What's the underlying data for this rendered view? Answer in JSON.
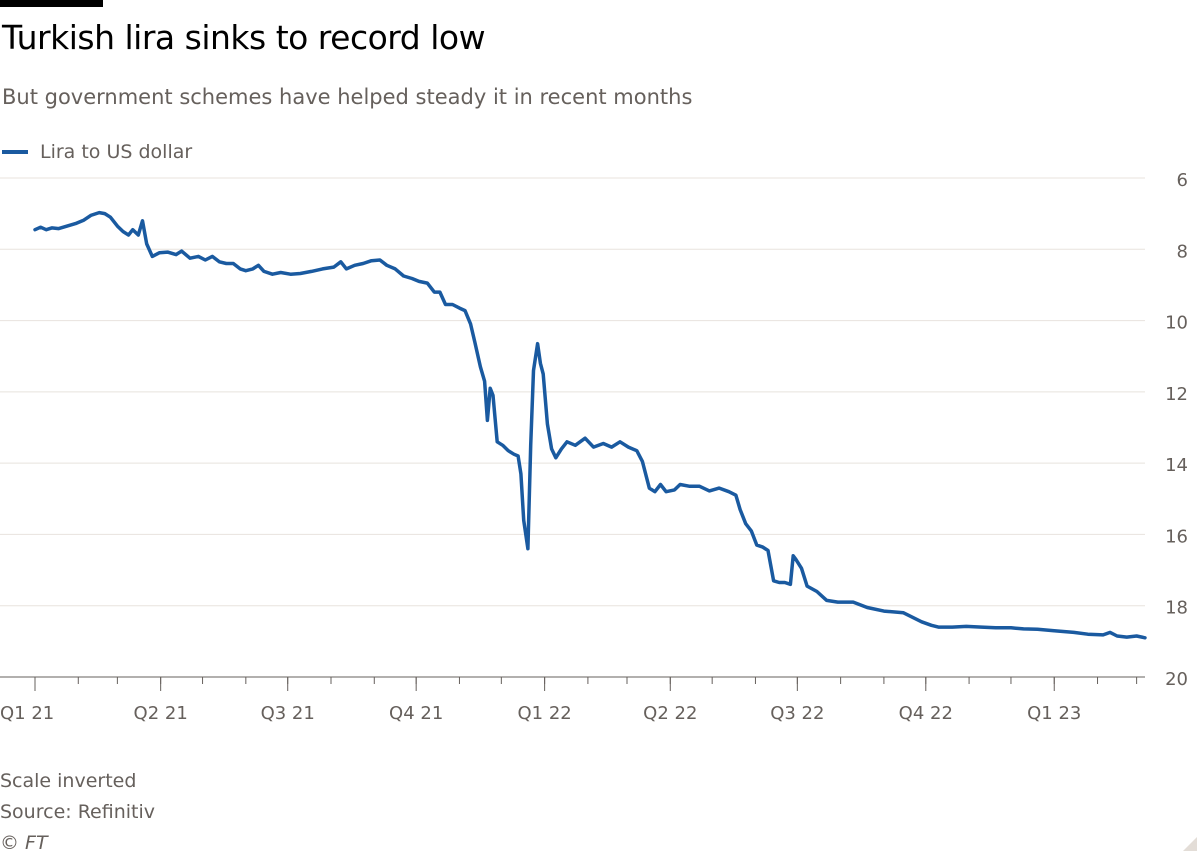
{
  "header": {
    "title": "Turkish lira sinks to record low",
    "subtitle": "But government schemes have helped steady it in recent months"
  },
  "footer": {
    "note": "Scale inverted",
    "source": "Source: Refinitiv",
    "copyright": "© FT"
  },
  "colors": {
    "line": "#1a5aa0",
    "grid": "#e8e3de",
    "axis": "#66605c",
    "text": "#66605c"
  },
  "chart_data": {
    "type": "line",
    "title": "Turkish lira sinks to record low",
    "subtitle": "But government schemes have helped steady it in recent months",
    "xlabel": "",
    "ylabel": "",
    "y_inverted": true,
    "ylim": [
      6,
      20
    ],
    "y_ticks": [
      6,
      8,
      10,
      12,
      14,
      16,
      18,
      20
    ],
    "y_axis_side": "right",
    "xlim": [
      "2021-01-01",
      "2023-03-07"
    ],
    "x_ticks": [
      {
        "date": "2021-01-01",
        "label": "Q1 21"
      },
      {
        "date": "2021-04-01",
        "label": "Q2 21"
      },
      {
        "date": "2021-07-01",
        "label": "Q3 21"
      },
      {
        "date": "2021-10-01",
        "label": "Q4 21"
      },
      {
        "date": "2022-01-01",
        "label": "Q1 22"
      },
      {
        "date": "2022-04-01",
        "label": "Q2 22"
      },
      {
        "date": "2022-07-01",
        "label": "Q3 22"
      },
      {
        "date": "2022-10-01",
        "label": "Q4 22"
      },
      {
        "date": "2023-01-01",
        "label": "Q1 23"
      }
    ],
    "grid": true,
    "legend_position": "top-left",
    "series": [
      {
        "name": "Lira to US dollar",
        "color": "#1a5aa0",
        "points": [
          [
            "2021-01-01",
            7.45
          ],
          [
            "2021-01-05",
            7.38
          ],
          [
            "2021-01-09",
            7.45
          ],
          [
            "2021-01-13",
            7.4
          ],
          [
            "2021-01-18",
            7.42
          ],
          [
            "2021-01-24",
            7.35
          ],
          [
            "2021-01-30",
            7.28
          ],
          [
            "2021-02-05",
            7.18
          ],
          [
            "2021-02-10",
            7.05
          ],
          [
            "2021-02-16",
            6.97
          ],
          [
            "2021-02-20",
            7.0
          ],
          [
            "2021-02-24",
            7.1
          ],
          [
            "2021-03-01",
            7.35
          ],
          [
            "2021-03-05",
            7.5
          ],
          [
            "2021-03-09",
            7.6
          ],
          [
            "2021-03-12",
            7.45
          ],
          [
            "2021-03-16",
            7.6
          ],
          [
            "2021-03-19",
            7.2
          ],
          [
            "2021-03-22",
            7.85
          ],
          [
            "2021-03-26",
            8.2
          ],
          [
            "2021-03-31",
            8.1
          ],
          [
            "2021-04-06",
            8.08
          ],
          [
            "2021-04-12",
            8.15
          ],
          [
            "2021-04-16",
            8.05
          ],
          [
            "2021-04-22",
            8.25
          ],
          [
            "2021-04-28",
            8.2
          ],
          [
            "2021-05-03",
            8.3
          ],
          [
            "2021-05-08",
            8.2
          ],
          [
            "2021-05-13",
            8.35
          ],
          [
            "2021-05-18",
            8.4
          ],
          [
            "2021-05-23",
            8.4
          ],
          [
            "2021-05-28",
            8.55
          ],
          [
            "2021-06-01",
            8.6
          ],
          [
            "2021-06-06",
            8.55
          ],
          [
            "2021-06-10",
            8.45
          ],
          [
            "2021-06-14",
            8.62
          ],
          [
            "2021-06-20",
            8.7
          ],
          [
            "2021-06-26",
            8.65
          ],
          [
            "2021-07-03",
            8.7
          ],
          [
            "2021-07-10",
            8.68
          ],
          [
            "2021-07-18",
            8.62
          ],
          [
            "2021-07-26",
            8.55
          ],
          [
            "2021-08-03",
            8.5
          ],
          [
            "2021-08-08",
            8.35
          ],
          [
            "2021-08-12",
            8.55
          ],
          [
            "2021-08-18",
            8.45
          ],
          [
            "2021-08-24",
            8.4
          ],
          [
            "2021-08-30",
            8.32
          ],
          [
            "2021-09-05",
            8.3
          ],
          [
            "2021-09-10",
            8.45
          ],
          [
            "2021-09-16",
            8.55
          ],
          [
            "2021-09-22",
            8.75
          ],
          [
            "2021-09-28",
            8.82
          ],
          [
            "2021-10-03",
            8.9
          ],
          [
            "2021-10-09",
            8.95
          ],
          [
            "2021-10-14",
            9.2
          ],
          [
            "2021-10-18",
            9.2
          ],
          [
            "2021-10-22",
            9.55
          ],
          [
            "2021-10-27",
            9.55
          ],
          [
            "2021-11-01",
            9.65
          ],
          [
            "2021-11-05",
            9.72
          ],
          [
            "2021-11-09",
            10.1
          ],
          [
            "2021-11-12",
            10.6
          ],
          [
            "2021-11-16",
            11.3
          ],
          [
            "2021-11-19",
            11.7
          ],
          [
            "2021-11-21",
            12.8
          ],
          [
            "2021-11-23",
            11.9
          ],
          [
            "2021-11-25",
            12.1
          ],
          [
            "2021-11-28",
            13.4
          ],
          [
            "2021-12-02",
            13.5
          ],
          [
            "2021-12-06",
            13.65
          ],
          [
            "2021-12-10",
            13.75
          ],
          [
            "2021-12-13",
            13.8
          ],
          [
            "2021-12-15",
            14.3
          ],
          [
            "2021-12-17",
            15.6
          ],
          [
            "2021-12-20",
            16.4
          ],
          [
            "2021-12-22",
            13.5
          ],
          [
            "2021-12-24",
            11.4
          ],
          [
            "2021-12-27",
            10.65
          ],
          [
            "2021-12-29",
            11.2
          ],
          [
            "2021-12-31",
            11.5
          ],
          [
            "2022-01-03",
            12.9
          ],
          [
            "2022-01-06",
            13.6
          ],
          [
            "2022-01-09",
            13.85
          ],
          [
            "2022-01-13",
            13.6
          ],
          [
            "2022-01-17",
            13.4
          ],
          [
            "2022-01-23",
            13.5
          ],
          [
            "2022-01-30",
            13.3
          ],
          [
            "2022-02-05",
            13.55
          ],
          [
            "2022-02-12",
            13.45
          ],
          [
            "2022-02-18",
            13.55
          ],
          [
            "2022-02-24",
            13.4
          ],
          [
            "2022-03-02",
            13.55
          ],
          [
            "2022-03-08",
            13.65
          ],
          [
            "2022-03-12",
            13.95
          ],
          [
            "2022-03-17",
            14.7
          ],
          [
            "2022-03-21",
            14.8
          ],
          [
            "2022-03-25",
            14.6
          ],
          [
            "2022-03-29",
            14.8
          ],
          [
            "2022-04-04",
            14.75
          ],
          [
            "2022-04-08",
            14.6
          ],
          [
            "2022-04-15",
            14.65
          ],
          [
            "2022-04-22",
            14.65
          ],
          [
            "2022-04-29",
            14.78
          ],
          [
            "2022-05-06",
            14.7
          ],
          [
            "2022-05-13",
            14.8
          ],
          [
            "2022-05-18",
            14.9
          ],
          [
            "2022-05-21",
            15.3
          ],
          [
            "2022-05-25",
            15.7
          ],
          [
            "2022-05-29",
            15.9
          ],
          [
            "2022-06-02",
            16.3
          ],
          [
            "2022-06-06",
            16.35
          ],
          [
            "2022-06-10",
            16.45
          ],
          [
            "2022-06-14",
            17.3
          ],
          [
            "2022-06-18",
            17.35
          ],
          [
            "2022-06-22",
            17.35
          ],
          [
            "2022-06-26",
            17.4
          ],
          [
            "2022-06-28",
            16.6
          ],
          [
            "2022-06-30",
            16.7
          ],
          [
            "2022-07-04",
            16.95
          ],
          [
            "2022-07-08",
            17.45
          ],
          [
            "2022-07-15",
            17.6
          ],
          [
            "2022-07-22",
            17.85
          ],
          [
            "2022-07-30",
            17.9
          ],
          [
            "2022-08-10",
            17.9
          ],
          [
            "2022-08-20",
            18.05
          ],
          [
            "2022-09-01",
            18.15
          ],
          [
            "2022-09-15",
            18.2
          ],
          [
            "2022-09-28",
            18.45
          ],
          [
            "2022-10-05",
            18.55
          ],
          [
            "2022-10-10",
            18.6
          ],
          [
            "2022-10-20",
            18.6
          ],
          [
            "2022-10-30",
            18.58
          ],
          [
            "2022-11-10",
            18.6
          ],
          [
            "2022-11-20",
            18.62
          ],
          [
            "2022-12-01",
            18.62
          ],
          [
            "2022-12-10",
            18.65
          ],
          [
            "2022-12-20",
            18.66
          ],
          [
            "2023-01-01",
            18.7
          ],
          [
            "2023-01-15",
            18.75
          ],
          [
            "2023-01-25",
            18.8
          ],
          [
            "2023-02-05",
            18.82
          ],
          [
            "2023-02-10",
            18.75
          ],
          [
            "2023-02-15",
            18.85
          ],
          [
            "2023-02-22",
            18.88
          ],
          [
            "2023-03-01",
            18.85
          ],
          [
            "2023-03-07",
            18.9
          ]
        ]
      }
    ]
  }
}
